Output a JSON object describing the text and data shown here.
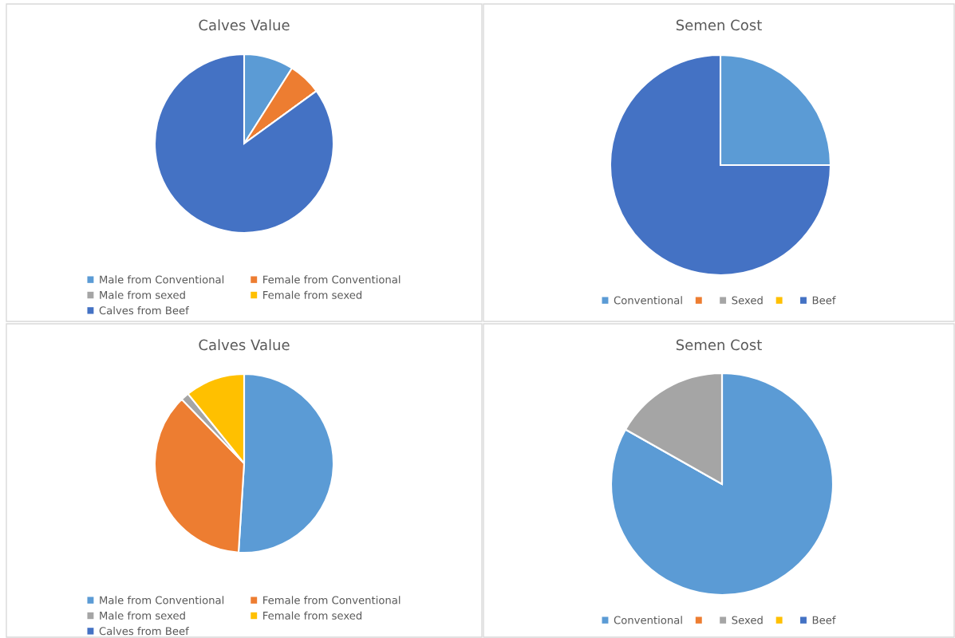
{
  "chart_data": [
    {
      "type": "pie",
      "title": "Calves Value",
      "categories": [
        "Male from Conventional",
        "Female from Conventional",
        "Male from sexed",
        "Female from sexed",
        "Calves from Beef"
      ],
      "values": [
        9,
        6,
        0,
        0,
        85
      ],
      "colors": [
        "#5b9bd5",
        "#ed7d31",
        "#a5a5a5",
        "#ffc000",
        "#4472c4"
      ],
      "legend": "bottom"
    },
    {
      "type": "pie",
      "title": "Semen Cost",
      "categories": [
        "Conventional",
        null,
        "Sexed",
        null,
        "Beef"
      ],
      "values": [
        25,
        0,
        0,
        0,
        75
      ],
      "colors": [
        "#5b9bd5",
        "#ed7d31",
        "#a5a5a5",
        "#ffc000",
        "#4472c4"
      ],
      "legend": "bottom"
    },
    {
      "type": "pie",
      "title": "Calves Value",
      "categories": [
        "Male from Conventional",
        "Female from Conventional",
        "Male from sexed",
        "Female from sexed",
        "Calves from Beef"
      ],
      "values": [
        51,
        36.7,
        1.5,
        10.8,
        0
      ],
      "colors": [
        "#5b9bd5",
        "#ed7d31",
        "#a5a5a5",
        "#ffc000",
        "#4472c4"
      ],
      "legend": "bottom"
    },
    {
      "type": "pie",
      "title": "Semen Cost",
      "categories": [
        "Conventional",
        null,
        "Sexed",
        null,
        "Beef"
      ],
      "values": [
        83.2,
        0,
        16.8,
        0,
        0
      ],
      "colors": [
        "#5b9bd5",
        "#ed7d31",
        "#a5a5a5",
        "#ffc000",
        "#4472c4"
      ],
      "legend": "bottom"
    }
  ]
}
